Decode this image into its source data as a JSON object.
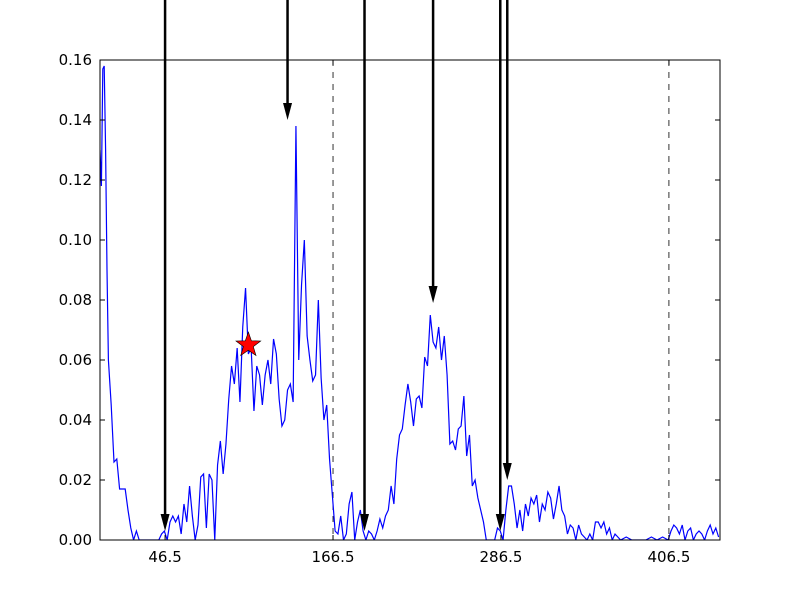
{
  "chart_data": {
    "type": "line",
    "title": "",
    "xlabel": "",
    "ylabel": "",
    "xlim": [
      0,
      443
    ],
    "ylim": [
      0,
      0.16
    ],
    "x_ticks": [
      46.5,
      166.5,
      286.5,
      406.5
    ],
    "x_tick_labels": [
      "46.5",
      "166.5",
      "286.5",
      "406.5"
    ],
    "y_ticks": [
      0.0,
      0.02,
      0.04,
      0.06,
      0.08,
      0.1,
      0.12,
      0.14,
      0.16
    ],
    "y_tick_labels": [
      "0.00",
      "0.02",
      "0.04",
      "0.06",
      "0.08",
      "0.10",
      "0.12",
      "0.14",
      "0.16"
    ],
    "grid": false,
    "vlines_dashed": [
      166.5,
      406.5
    ],
    "series": [
      {
        "color": "#0000ff",
        "points": [
          [
            0,
            0.13
          ],
          [
            1,
            0.118
          ],
          [
            2,
            0.157
          ],
          [
            3,
            0.158
          ],
          [
            4,
            0.13
          ],
          [
            5,
            0.09
          ],
          [
            6,
            0.06
          ],
          [
            8,
            0.045
          ],
          [
            10,
            0.026
          ],
          [
            12,
            0.027
          ],
          [
            14,
            0.017
          ],
          [
            18,
            0.017
          ],
          [
            20,
            0.01
          ],
          [
            22,
            0.004
          ],
          [
            24,
            0.0
          ],
          [
            26,
            0.003
          ],
          [
            28,
            0.0
          ],
          [
            30,
            0.0
          ],
          [
            32,
            0.0
          ],
          [
            42,
            0.0
          ],
          [
            44,
            0.002
          ],
          [
            46,
            0.003
          ],
          [
            48,
            0.0
          ],
          [
            50,
            0.006
          ],
          [
            52,
            0.008
          ],
          [
            54,
            0.006
          ],
          [
            56,
            0.008
          ],
          [
            58,
            0.002
          ],
          [
            60,
            0.012
          ],
          [
            62,
            0.006
          ],
          [
            64,
            0.018
          ],
          [
            66,
            0.008
          ],
          [
            68,
            0.0
          ],
          [
            70,
            0.005
          ],
          [
            72,
            0.021
          ],
          [
            74,
            0.022
          ],
          [
            76,
            0.004
          ],
          [
            78,
            0.022
          ],
          [
            80,
            0.02
          ],
          [
            82,
            0.0
          ],
          [
            84,
            0.025
          ],
          [
            86,
            0.033
          ],
          [
            88,
            0.022
          ],
          [
            90,
            0.032
          ],
          [
            92,
            0.047
          ],
          [
            94,
            0.058
          ],
          [
            96,
            0.052
          ],
          [
            98,
            0.064
          ],
          [
            100,
            0.046
          ],
          [
            102,
            0.071
          ],
          [
            104,
            0.084
          ],
          [
            106,
            0.062
          ],
          [
            108,
            0.064
          ],
          [
            110,
            0.043
          ],
          [
            112,
            0.058
          ],
          [
            114,
            0.055
          ],
          [
            116,
            0.045
          ],
          [
            118,
            0.055
          ],
          [
            120,
            0.06
          ],
          [
            122,
            0.052
          ],
          [
            124,
            0.067
          ],
          [
            126,
            0.062
          ],
          [
            128,
            0.047
          ],
          [
            130,
            0.038
          ],
          [
            132,
            0.04
          ],
          [
            134,
            0.05
          ],
          [
            136,
            0.052
          ],
          [
            138,
            0.046
          ],
          [
            140,
            0.138
          ],
          [
            142,
            0.06
          ],
          [
            144,
            0.085
          ],
          [
            146,
            0.1
          ],
          [
            148,
            0.068
          ],
          [
            150,
            0.06
          ],
          [
            152,
            0.053
          ],
          [
            154,
            0.055
          ],
          [
            156,
            0.08
          ],
          [
            158,
            0.054
          ],
          [
            160,
            0.04
          ],
          [
            162,
            0.045
          ],
          [
            164,
            0.027
          ],
          [
            166,
            0.015
          ],
          [
            168,
            0.003
          ],
          [
            170,
            0.002
          ],
          [
            172,
            0.008
          ],
          [
            174,
            0.0
          ],
          [
            176,
            0.002
          ],
          [
            178,
            0.012
          ],
          [
            180,
            0.016
          ],
          [
            182,
            0.0
          ],
          [
            184,
            0.006
          ],
          [
            186,
            0.01
          ],
          [
            188,
            0.003
          ],
          [
            190,
            0.0
          ],
          [
            192,
            0.003
          ],
          [
            194,
            0.002
          ],
          [
            196,
            0.0
          ],
          [
            198,
            0.003
          ],
          [
            200,
            0.007
          ],
          [
            202,
            0.004
          ],
          [
            204,
            0.008
          ],
          [
            206,
            0.01
          ],
          [
            208,
            0.018
          ],
          [
            210,
            0.012
          ],
          [
            212,
            0.027
          ],
          [
            214,
            0.035
          ],
          [
            216,
            0.037
          ],
          [
            218,
            0.045
          ],
          [
            220,
            0.052
          ],
          [
            222,
            0.046
          ],
          [
            224,
            0.038
          ],
          [
            226,
            0.047
          ],
          [
            228,
            0.048
          ],
          [
            230,
            0.044
          ],
          [
            232,
            0.061
          ],
          [
            234,
            0.058
          ],
          [
            236,
            0.075
          ],
          [
            238,
            0.066
          ],
          [
            240,
            0.064
          ],
          [
            242,
            0.071
          ],
          [
            244,
            0.06
          ],
          [
            246,
            0.068
          ],
          [
            248,
            0.055
          ],
          [
            250,
            0.032
          ],
          [
            252,
            0.033
          ],
          [
            254,
            0.03
          ],
          [
            256,
            0.037
          ],
          [
            258,
            0.038
          ],
          [
            260,
            0.048
          ],
          [
            262,
            0.028
          ],
          [
            264,
            0.035
          ],
          [
            266,
            0.018
          ],
          [
            268,
            0.02
          ],
          [
            270,
            0.014
          ],
          [
            272,
            0.01
          ],
          [
            274,
            0.006
          ],
          [
            276,
            0.0
          ],
          [
            278,
            0.0
          ],
          [
            282,
            0.0
          ],
          [
            284,
            0.004
          ],
          [
            286,
            0.003
          ],
          [
            288,
            0.0
          ],
          [
            290,
            0.01
          ],
          [
            292,
            0.018
          ],
          [
            294,
            0.018
          ],
          [
            296,
            0.012
          ],
          [
            298,
            0.004
          ],
          [
            300,
            0.01
          ],
          [
            302,
            0.003
          ],
          [
            304,
            0.012
          ],
          [
            306,
            0.008
          ],
          [
            308,
            0.014
          ],
          [
            310,
            0.012
          ],
          [
            312,
            0.015
          ],
          [
            314,
            0.006
          ],
          [
            316,
            0.012
          ],
          [
            318,
            0.01
          ],
          [
            320,
            0.016
          ],
          [
            322,
            0.014
          ],
          [
            324,
            0.007
          ],
          [
            326,
            0.012
          ],
          [
            328,
            0.018
          ],
          [
            330,
            0.01
          ],
          [
            332,
            0.008
          ],
          [
            334,
            0.002
          ],
          [
            336,
            0.005
          ],
          [
            338,
            0.004
          ],
          [
            340,
            0.0
          ],
          [
            342,
            0.005
          ],
          [
            344,
            0.002
          ],
          [
            346,
            0.001
          ],
          [
            348,
            0.0
          ],
          [
            350,
            0.002
          ],
          [
            352,
            0.0
          ],
          [
            354,
            0.006
          ],
          [
            356,
            0.006
          ],
          [
            358,
            0.004
          ],
          [
            360,
            0.006
          ],
          [
            362,
            0.002
          ],
          [
            364,
            0.004
          ],
          [
            366,
            0.0
          ],
          [
            368,
            0.002
          ],
          [
            370,
            0.001
          ],
          [
            372,
            0.0
          ],
          [
            376,
            0.001
          ],
          [
            380,
            0.0
          ],
          [
            390,
            0.0
          ],
          [
            394,
            0.001
          ],
          [
            398,
            0.0
          ],
          [
            402,
            0.001
          ],
          [
            406,
            0.0
          ],
          [
            408,
            0.003
          ],
          [
            410,
            0.005
          ],
          [
            412,
            0.004
          ],
          [
            414,
            0.002
          ],
          [
            416,
            0.005
          ],
          [
            418,
            0.0
          ],
          [
            420,
            0.003
          ],
          [
            422,
            0.004
          ],
          [
            424,
            0.0
          ],
          [
            426,
            0.002
          ],
          [
            428,
            0.003
          ],
          [
            430,
            0.002
          ],
          [
            432,
            0.0
          ],
          [
            434,
            0.003
          ],
          [
            436,
            0.005
          ],
          [
            438,
            0.002
          ],
          [
            440,
            0.004
          ],
          [
            442,
            0.001
          ]
        ]
      }
    ],
    "arrows": [
      {
        "x": 46.5,
        "y_tip": 0.003
      },
      {
        "x": 134,
        "y_tip": 0.14
      },
      {
        "x": 189,
        "y_tip": 0.003
      },
      {
        "x": 238,
        "y_tip": 0.079
      },
      {
        "x": 286,
        "y_tip": 0.003
      },
      {
        "x": 291,
        "y_tip": 0.02
      }
    ],
    "markers": [
      {
        "shape": "star",
        "x": 106,
        "y": 0.065,
        "color": "#ff0000"
      }
    ]
  }
}
